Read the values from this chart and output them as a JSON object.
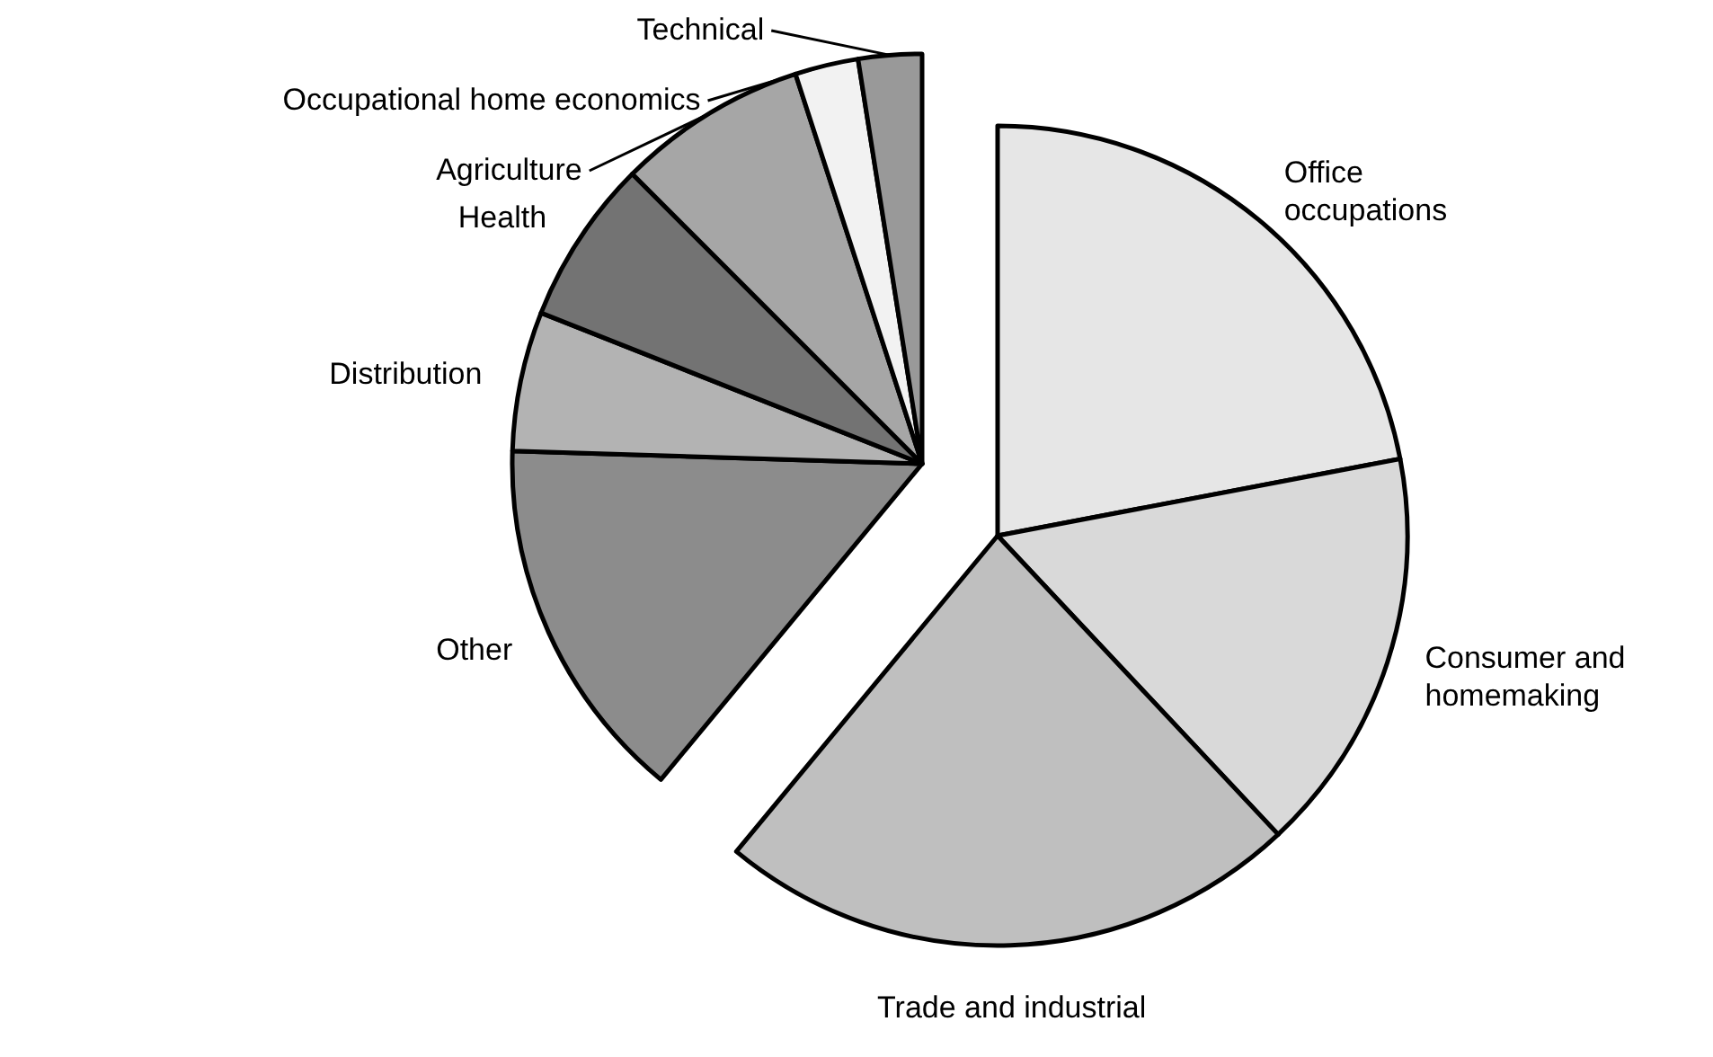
{
  "chart_data": {
    "type": "pie",
    "categories": [
      "Office occupations",
      "Consumer and homemaking",
      "Trade and industrial",
      "Other",
      "Distribution",
      "Health",
      "Agriculture",
      "Occupational home economics",
      "Technical"
    ],
    "values": [
      22,
      16,
      23,
      14.5,
      5.5,
      6.5,
      7.5,
      2.5,
      2.5
    ],
    "colors": [
      "#e6e6e6",
      "#d9d9d9",
      "#bfbfbf",
      "#8c8c8c",
      "#b3b3b3",
      "#737373",
      "#a6a6a6",
      "#f2f2f2",
      "#999999"
    ]
  }
}
